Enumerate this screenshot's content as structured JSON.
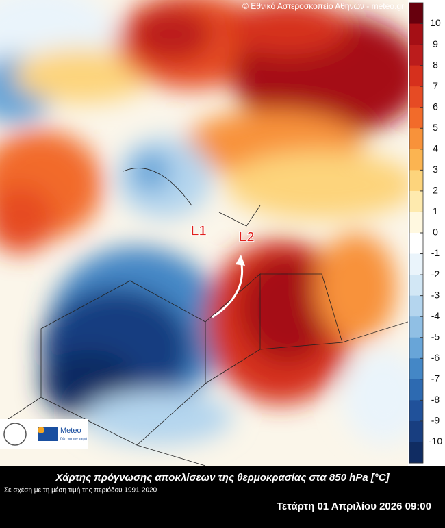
{
  "map": {
    "credit": "© Εθνικό Αστεροσκοπείο Αθηνών - meteo.gr",
    "markers": [
      "L1",
      "L2"
    ],
    "logo": {
      "name": "Meteo",
      "tagline": "Όλα για τον καιρό"
    }
  },
  "colorbar": {
    "labels": [
      10,
      9,
      8,
      7,
      6,
      5,
      4,
      3,
      2,
      1,
      0,
      -1,
      -2,
      -3,
      -4,
      -5,
      -6,
      -7,
      -8,
      -9,
      -10
    ],
    "colors": [
      "#67000d",
      "#a50f15",
      "#bb1c1c",
      "#d6301d",
      "#e64b24",
      "#f26b2a",
      "#f8923a",
      "#fbb451",
      "#fdd47c",
      "#feeaae",
      "#fff8e0",
      "#ffffff",
      "#eaf4fb",
      "#d2e7f5",
      "#b4d5ee",
      "#90bfe4",
      "#68a5d8",
      "#4487c6",
      "#2d6ab1",
      "#20519a",
      "#183e80",
      "#102c62"
    ]
  },
  "footer": {
    "title": "Χάρτης πρόγνωσης αποκλίσεων της θερμοκρασίας στα 850 hPa [°C]",
    "subtitle": "Σε σχέση με τη μέση τιμή της περιόδου 1991-2020",
    "date": "Τετάρτη 01 Απριλίου 2026 09:00"
  }
}
